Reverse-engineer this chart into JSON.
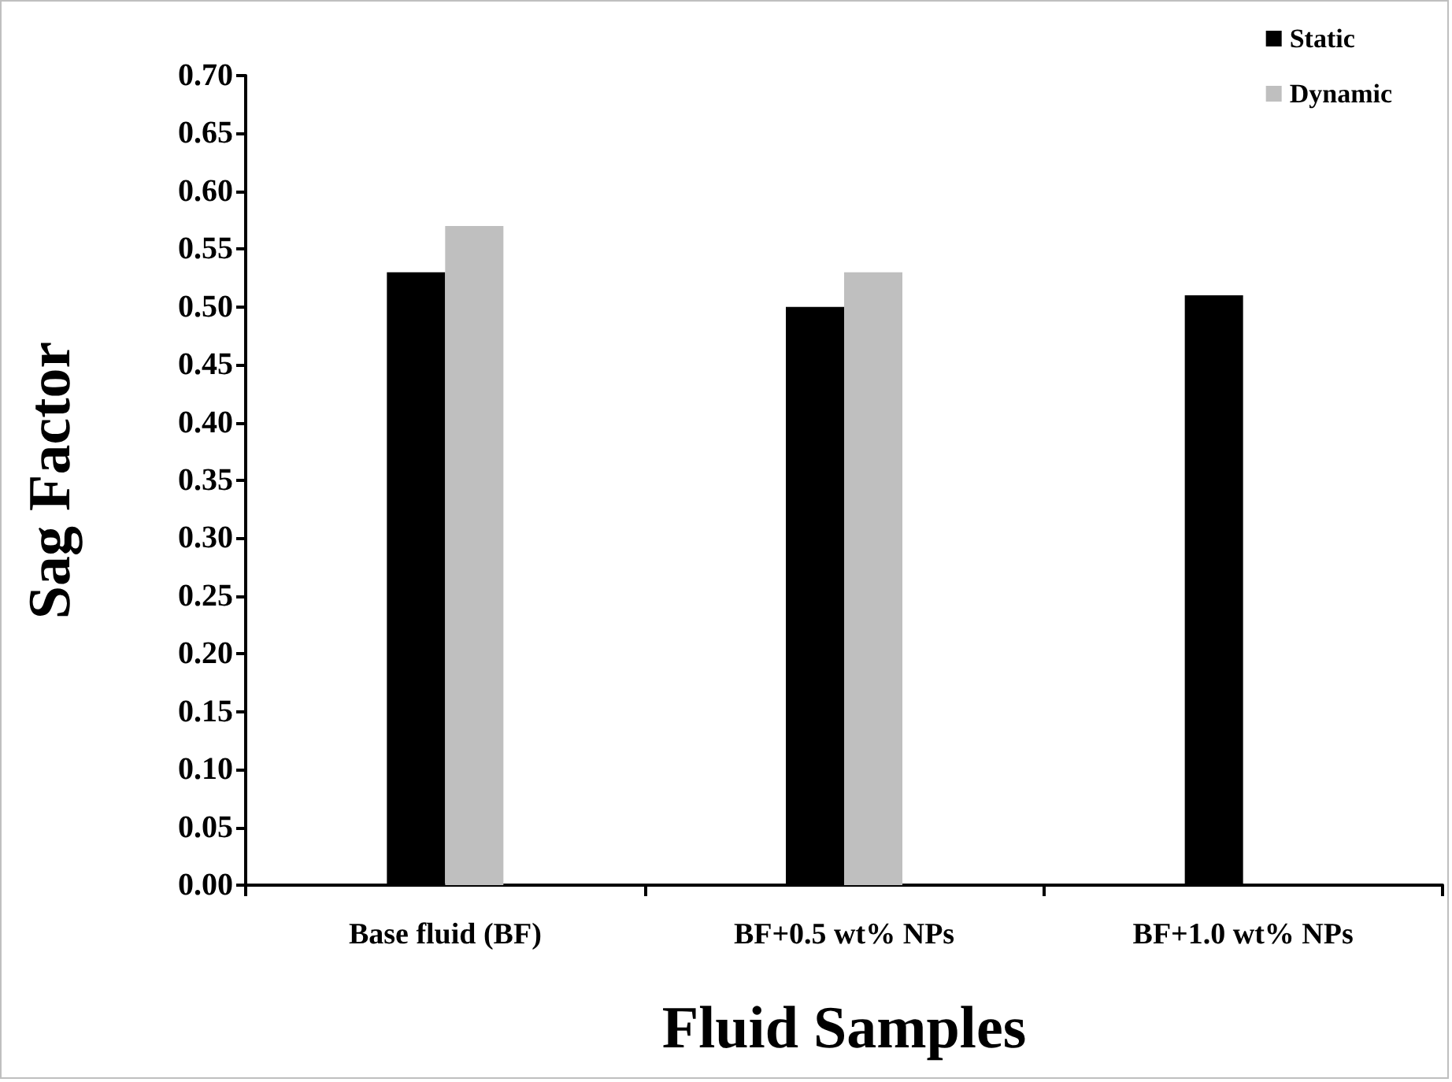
{
  "chart_data": {
    "type": "bar",
    "xlabel": "Fluid Samples",
    "ylabel": "Sag Factor",
    "categories": [
      "Base fluid (BF)",
      "BF+0.5 wt% NPs",
      "BF+1.0 wt% NPs"
    ],
    "series": [
      {
        "name": "Static",
        "color": "#000000",
        "values": [
          0.53,
          0.5,
          0.51
        ]
      },
      {
        "name": "Dynamic",
        "color": "#bfbfbf",
        "values": [
          0.57,
          0.53,
          null
        ]
      }
    ],
    "ylim": [
      0,
      0.7
    ],
    "yticks": [
      {
        "value": 0,
        "label": "0.00"
      },
      {
        "value": 0.05,
        "label": "0.05"
      },
      {
        "value": 0.1,
        "label": "0.10"
      },
      {
        "value": 0.15,
        "label": "0.15"
      },
      {
        "value": 0.2,
        "label": "0.20"
      },
      {
        "value": 0.25,
        "label": "0.25"
      },
      {
        "value": 0.3,
        "label": "0.30"
      },
      {
        "value": 0.35,
        "label": "0.35"
      },
      {
        "value": 0.4,
        "label": "0.40"
      },
      {
        "value": 0.45,
        "label": "0.45"
      },
      {
        "value": 0.5,
        "label": "0.50"
      },
      {
        "value": 0.55,
        "label": "0.55"
      },
      {
        "value": 0.6,
        "label": "0.60"
      },
      {
        "value": 0.65,
        "label": "0.65"
      },
      {
        "value": 0.7,
        "label": "0.70"
      }
    ],
    "grid": false,
    "legend": "top right"
  }
}
